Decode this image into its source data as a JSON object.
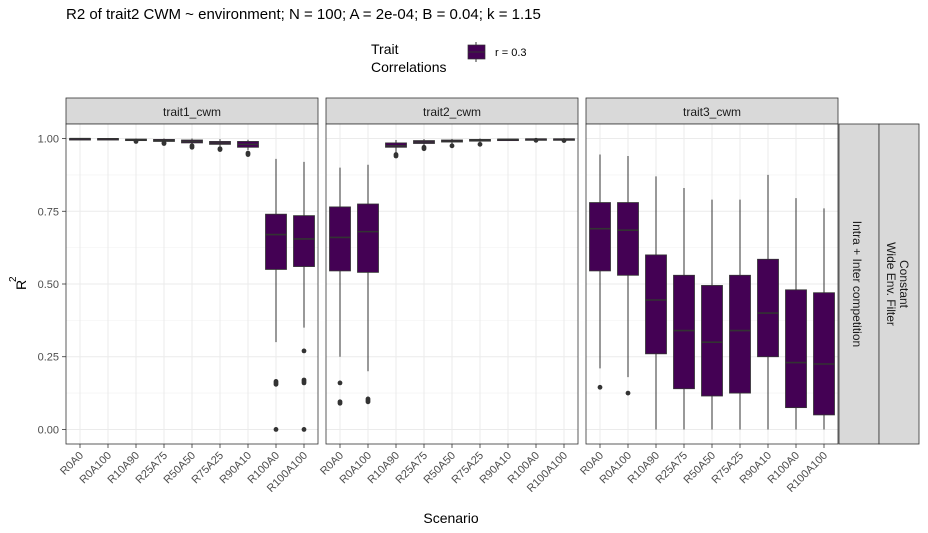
{
  "title": "R2 of trait2 CWM ~ environment; N = 100; A = 2e-04; B = 0.04; k = 1.15",
  "legend": {
    "title_line1": "Trait",
    "title_line2": "Correlations",
    "key_label": "r = 0.3",
    "fill": "#440154"
  },
  "strips": {
    "row1": "Intra + Inter competition",
    "row2_line1": "Constant",
    "row2_line2": "Wide Env. Filter"
  },
  "chart_data": {
    "type": "boxplot",
    "ylabel_main": "R",
    "ylabel_sup": "2",
    "xlabel": "Scenario",
    "ylim": [
      -0.05,
      1.05
    ],
    "yticks": [
      "0.00",
      "0.25",
      "0.50",
      "0.75",
      "1.00"
    ],
    "grid": true,
    "legend_position": "top",
    "fill": "#440154",
    "categories": [
      "R0A0",
      "R0A100",
      "R10A90",
      "R25A75",
      "R50A50",
      "R75A25",
      "R90A10",
      "R100A0",
      "R100A100"
    ],
    "panels": [
      {
        "name": "trait1_cwm",
        "boxes": [
          {
            "min": 0.998,
            "q1": 0.999,
            "median": 0.9995,
            "q3": 1.0,
            "max": 1.0,
            "outliers": []
          },
          {
            "min": 0.997,
            "q1": 0.998,
            "median": 0.999,
            "q3": 1.0,
            "max": 1.0,
            "outliers": []
          },
          {
            "min": 0.99,
            "q1": 0.994,
            "median": 0.996,
            "q3": 0.998,
            "max": 1.0,
            "outliers": [
              0.99
            ]
          },
          {
            "min": 0.985,
            "q1": 0.99,
            "median": 0.993,
            "q3": 0.997,
            "max": 1.0,
            "outliers": [
              0.985,
              0.983
            ]
          },
          {
            "min": 0.98,
            "q1": 0.985,
            "median": 0.99,
            "q3": 0.995,
            "max": 1.0,
            "outliers": [
              0.975,
              0.97
            ]
          },
          {
            "min": 0.97,
            "q1": 0.98,
            "median": 0.985,
            "q3": 0.99,
            "max": 0.998,
            "outliers": [
              0.965,
              0.962
            ]
          },
          {
            "min": 0.96,
            "q1": 0.97,
            "median": 0.98,
            "q3": 0.99,
            "max": 0.996,
            "outliers": [
              0.95,
              0.945
            ]
          },
          {
            "min": 0.3,
            "q1": 0.55,
            "median": 0.67,
            "q3": 0.74,
            "max": 0.93,
            "outliers": [
              0.165,
              0.16,
              0.155,
              0.0
            ]
          },
          {
            "min": 0.35,
            "q1": 0.56,
            "median": 0.655,
            "q3": 0.735,
            "max": 0.92,
            "outliers": [
              0.27,
              0.17,
              0.165,
              0.16,
              0.0
            ]
          }
        ]
      },
      {
        "name": "trait2_cwm",
        "boxes": [
          {
            "min": 0.25,
            "q1": 0.545,
            "median": 0.66,
            "q3": 0.765,
            "max": 0.9,
            "outliers": [
              0.16,
              0.095,
              0.09
            ]
          },
          {
            "min": 0.2,
            "q1": 0.54,
            "median": 0.68,
            "q3": 0.775,
            "max": 0.91,
            "outliers": [
              0.105,
              0.1,
              0.095
            ]
          },
          {
            "min": 0.95,
            "q1": 0.97,
            "median": 0.975,
            "q3": 0.985,
            "max": 0.995,
            "outliers": [
              0.945,
              0.94
            ]
          },
          {
            "min": 0.975,
            "q1": 0.983,
            "median": 0.988,
            "q3": 0.993,
            "max": 0.998,
            "outliers": [
              0.97,
              0.965
            ]
          },
          {
            "min": 0.982,
            "q1": 0.988,
            "median": 0.991,
            "q3": 0.995,
            "max": 0.999,
            "outliers": [
              0.975
            ]
          },
          {
            "min": 0.987,
            "q1": 0.991,
            "median": 0.994,
            "q3": 0.997,
            "max": 1.0,
            "outliers": [
              0.98
            ]
          },
          {
            "min": 0.995,
            "q1": 0.996,
            "median": 0.997,
            "q3": 0.998,
            "max": 1.0,
            "outliers": []
          },
          {
            "min": 0.996,
            "q1": 0.997,
            "median": 0.998,
            "q3": 0.999,
            "max": 1.0,
            "outliers": [
              0.994
            ]
          },
          {
            "min": 0.996,
            "q1": 0.997,
            "median": 0.998,
            "q3": 0.999,
            "max": 1.0,
            "outliers": [
              0.993
            ]
          }
        ]
      },
      {
        "name": "trait3_cwm",
        "boxes": [
          {
            "min": 0.21,
            "q1": 0.545,
            "median": 0.69,
            "q3": 0.78,
            "max": 0.945,
            "outliers": [
              0.145
            ]
          },
          {
            "min": 0.18,
            "q1": 0.53,
            "median": 0.685,
            "q3": 0.78,
            "max": 0.94,
            "outliers": [
              0.125
            ]
          },
          {
            "min": 0.0,
            "q1": 0.26,
            "median": 0.445,
            "q3": 0.6,
            "max": 0.87,
            "outliers": []
          },
          {
            "min": 0.0,
            "q1": 0.14,
            "median": 0.34,
            "q3": 0.53,
            "max": 0.83,
            "outliers": []
          },
          {
            "min": 0.0,
            "q1": 0.115,
            "median": 0.3,
            "q3": 0.495,
            "max": 0.79,
            "outliers": []
          },
          {
            "min": 0.0,
            "q1": 0.125,
            "median": 0.34,
            "q3": 0.53,
            "max": 0.79,
            "outliers": []
          },
          {
            "min": 0.0,
            "q1": 0.25,
            "median": 0.4,
            "q3": 0.585,
            "max": 0.875,
            "outliers": []
          },
          {
            "min": 0.0,
            "q1": 0.075,
            "median": 0.23,
            "q3": 0.48,
            "max": 0.795,
            "outliers": []
          },
          {
            "min": 0.0,
            "q1": 0.05,
            "median": 0.225,
            "q3": 0.47,
            "max": 0.76,
            "outliers": []
          }
        ]
      }
    ]
  }
}
